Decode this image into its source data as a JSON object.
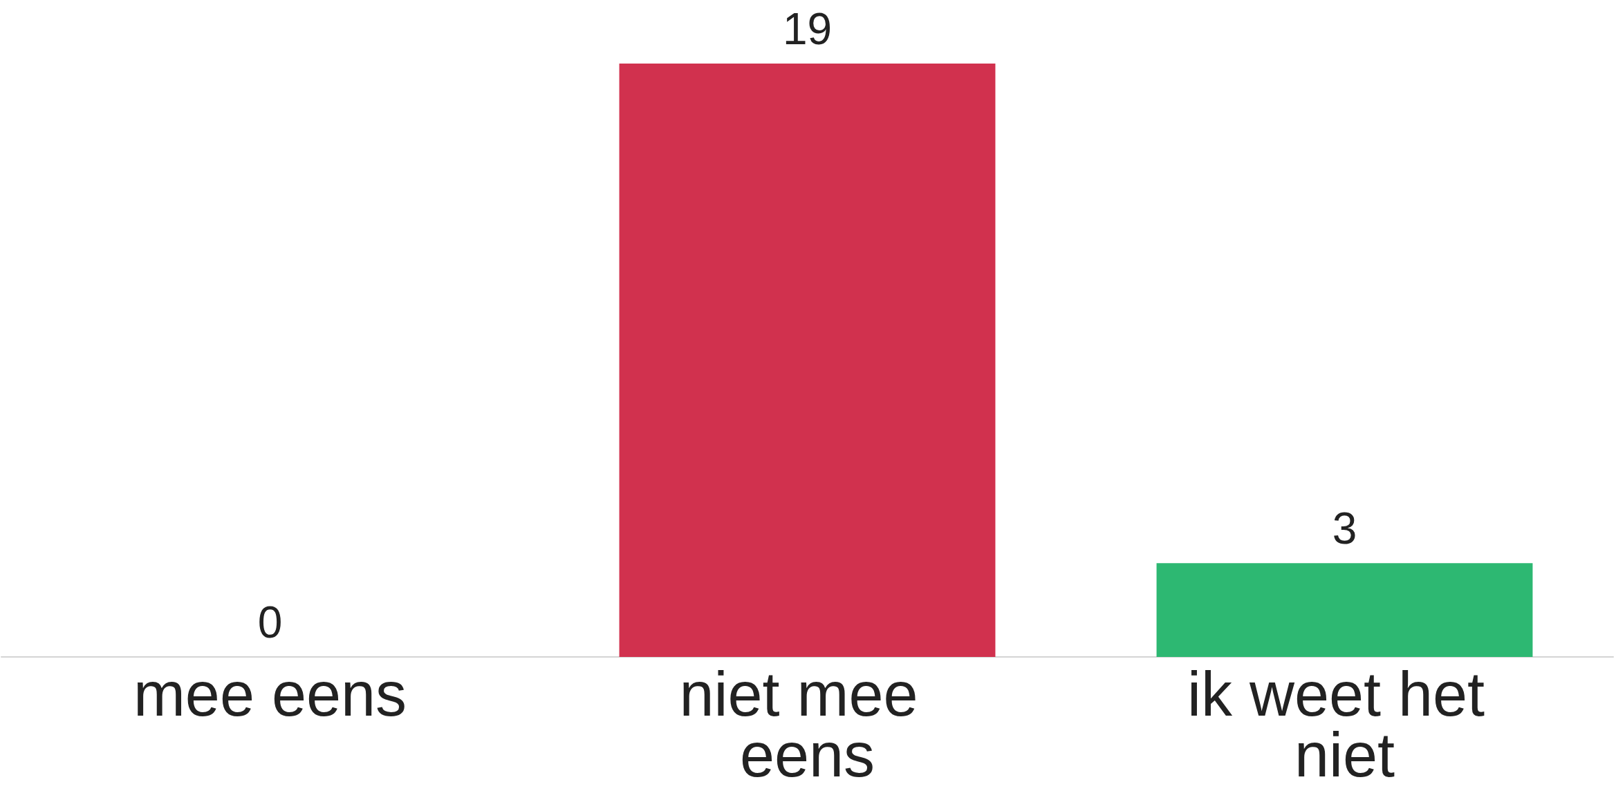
{
  "chart_data": {
    "type": "bar",
    "categories": [
      "mee eens",
      "niet mee eens",
      "ik weet het niet"
    ],
    "values": [
      0,
      19,
      3
    ],
    "colors": [
      null,
      "#d1314e",
      "#2db872"
    ],
    "data_labels": true
  }
}
